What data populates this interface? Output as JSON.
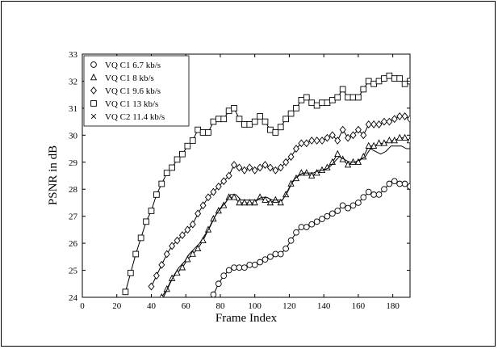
{
  "chart_data": {
    "type": "line",
    "xlabel": "Frame Index",
    "ylabel": "PSNR in dB",
    "xlim": [
      0,
      190
    ],
    "ylim": [
      24,
      33
    ],
    "xticks": [
      "0",
      "20",
      "40",
      "60",
      "80",
      "100",
      "120",
      "140",
      "160",
      "180"
    ],
    "yticks": [
      "24",
      "25",
      "26",
      "27",
      "28",
      "29",
      "30",
      "31",
      "32",
      "33"
    ],
    "grid": false,
    "legend_position": "top-left",
    "series": [
      {
        "name": "VQ C1 6.7 kb/s",
        "marker": "circle",
        "x": [
          76,
          79,
          82,
          85,
          88,
          91,
          94,
          97,
          100,
          103,
          106,
          109,
          112,
          115,
          118,
          121,
          124,
          127,
          130,
          133,
          136,
          139,
          142,
          145,
          148,
          151,
          154,
          157,
          160,
          163,
          166,
          169,
          172,
          175,
          178,
          181,
          184,
          187,
          190
        ],
        "y": [
          24.1,
          24.5,
          24.8,
          25.0,
          25.1,
          25.1,
          25.1,
          25.2,
          25.2,
          25.3,
          25.4,
          25.5,
          25.6,
          25.6,
          25.8,
          26.1,
          26.4,
          26.6,
          26.6,
          26.7,
          26.8,
          26.9,
          27.0,
          27.1,
          27.2,
          27.4,
          27.3,
          27.4,
          27.5,
          27.7,
          27.9,
          27.8,
          27.8,
          28.0,
          28.2,
          28.3,
          28.2,
          28.2,
          28.1
        ]
      },
      {
        "name": "VQ C1 8 kb/s",
        "marker": "triangle",
        "x": [
          46,
          49,
          52,
          55,
          58,
          61,
          64,
          67,
          70,
          73,
          76,
          79,
          82,
          85,
          88,
          91,
          94,
          97,
          100,
          103,
          106,
          109,
          112,
          115,
          118,
          121,
          124,
          127,
          130,
          133,
          136,
          139,
          142,
          145,
          148,
          151,
          154,
          157,
          160,
          163,
          166,
          169,
          172,
          175,
          178,
          181,
          184,
          187,
          190
        ],
        "y": [
          24.0,
          24.3,
          24.7,
          24.9,
          25.1,
          25.4,
          25.6,
          25.8,
          26.1,
          26.5,
          26.9,
          27.2,
          27.4,
          27.7,
          27.7,
          27.5,
          27.5,
          27.5,
          27.5,
          27.7,
          27.6,
          27.5,
          27.6,
          27.5,
          27.8,
          28.2,
          28.4,
          28.6,
          28.6,
          28.5,
          28.6,
          28.7,
          28.8,
          29.0,
          29.3,
          29.1,
          28.9,
          29.0,
          29.0,
          29.2,
          29.6,
          29.6,
          29.7,
          29.7,
          29.8,
          29.8,
          29.9,
          29.9,
          29.8
        ]
      },
      {
        "name": "VQ C1 9.6 kb/s",
        "marker": "diamond",
        "x": [
          40,
          43,
          46,
          49,
          52,
          55,
          58,
          61,
          64,
          67,
          70,
          73,
          76,
          79,
          82,
          85,
          88,
          91,
          94,
          97,
          100,
          103,
          106,
          109,
          112,
          115,
          118,
          121,
          124,
          127,
          130,
          133,
          136,
          139,
          142,
          145,
          148,
          151,
          154,
          157,
          160,
          163,
          166,
          169,
          172,
          175,
          178,
          181,
          184,
          187,
          190
        ],
        "y": [
          24.4,
          24.8,
          25.2,
          25.6,
          25.9,
          26.1,
          26.3,
          26.5,
          26.7,
          27.1,
          27.4,
          27.7,
          27.9,
          28.1,
          28.3,
          28.5,
          28.9,
          28.8,
          28.7,
          28.8,
          28.7,
          28.8,
          28.9,
          28.8,
          28.7,
          28.8,
          29.0,
          29.2,
          29.5,
          29.7,
          29.7,
          29.8,
          29.8,
          29.8,
          29.9,
          30.0,
          29.8,
          30.2,
          29.9,
          30.0,
          30.2,
          30.0,
          30.4,
          30.4,
          30.4,
          30.5,
          30.5,
          30.6,
          30.7,
          30.7,
          30.6
        ]
      },
      {
        "name": "VQ C1 13 kb/s",
        "marker": "square",
        "x": [
          25,
          28,
          31,
          34,
          37,
          40,
          43,
          46,
          49,
          52,
          55,
          58,
          61,
          64,
          67,
          70,
          73,
          76,
          79,
          82,
          85,
          88,
          91,
          94,
          97,
          100,
          103,
          106,
          109,
          112,
          115,
          118,
          121,
          124,
          127,
          130,
          133,
          136,
          139,
          142,
          145,
          148,
          151,
          154,
          157,
          160,
          163,
          166,
          169,
          172,
          175,
          178,
          181,
          184,
          187,
          190
        ],
        "y": [
          24.2,
          24.9,
          25.6,
          26.2,
          26.8,
          27.2,
          27.8,
          28.2,
          28.6,
          28.8,
          29.1,
          29.3,
          29.6,
          29.8,
          30.2,
          30.1,
          30.1,
          30.5,
          30.6,
          30.6,
          30.9,
          31.0,
          30.6,
          30.4,
          30.4,
          30.5,
          30.7,
          30.5,
          30.2,
          30.1,
          30.3,
          30.6,
          30.8,
          31.0,
          31.3,
          31.4,
          31.2,
          31.1,
          31.2,
          31.2,
          31.3,
          31.4,
          31.7,
          31.4,
          31.4,
          31.4,
          31.7,
          32.0,
          31.9,
          32.0,
          32.1,
          32.2,
          32.1,
          32.1,
          31.9,
          32.0
        ]
      },
      {
        "name": "VQ C2 11.4 kb/s",
        "marker": "cross",
        "x": [
          47,
          50,
          53,
          56,
          59,
          62,
          65,
          68,
          71,
          74,
          77,
          80,
          83,
          86,
          89,
          92,
          95,
          98,
          101,
          104,
          107,
          110,
          113,
          116,
          119,
          122,
          125,
          128,
          131,
          134,
          137,
          140,
          143,
          146,
          149,
          152,
          155,
          158,
          161,
          164,
          167,
          170,
          173,
          176,
          179,
          182,
          185,
          188,
          190
        ],
        "y": [
          24.0,
          24.4,
          24.8,
          25.1,
          25.3,
          25.6,
          25.8,
          26.0,
          26.3,
          26.6,
          27.0,
          27.3,
          27.5,
          27.8,
          27.8,
          27.6,
          27.6,
          27.6,
          27.6,
          27.7,
          27.7,
          27.6,
          27.6,
          27.6,
          27.9,
          28.3,
          28.5,
          28.6,
          28.6,
          28.6,
          28.7,
          28.7,
          28.8,
          29.0,
          29.2,
          29.1,
          29.0,
          29.0,
          29.1,
          29.2,
          29.5,
          29.4,
          29.3,
          29.4,
          29.6,
          29.6,
          29.6,
          29.5,
          29.5
        ]
      }
    ]
  }
}
